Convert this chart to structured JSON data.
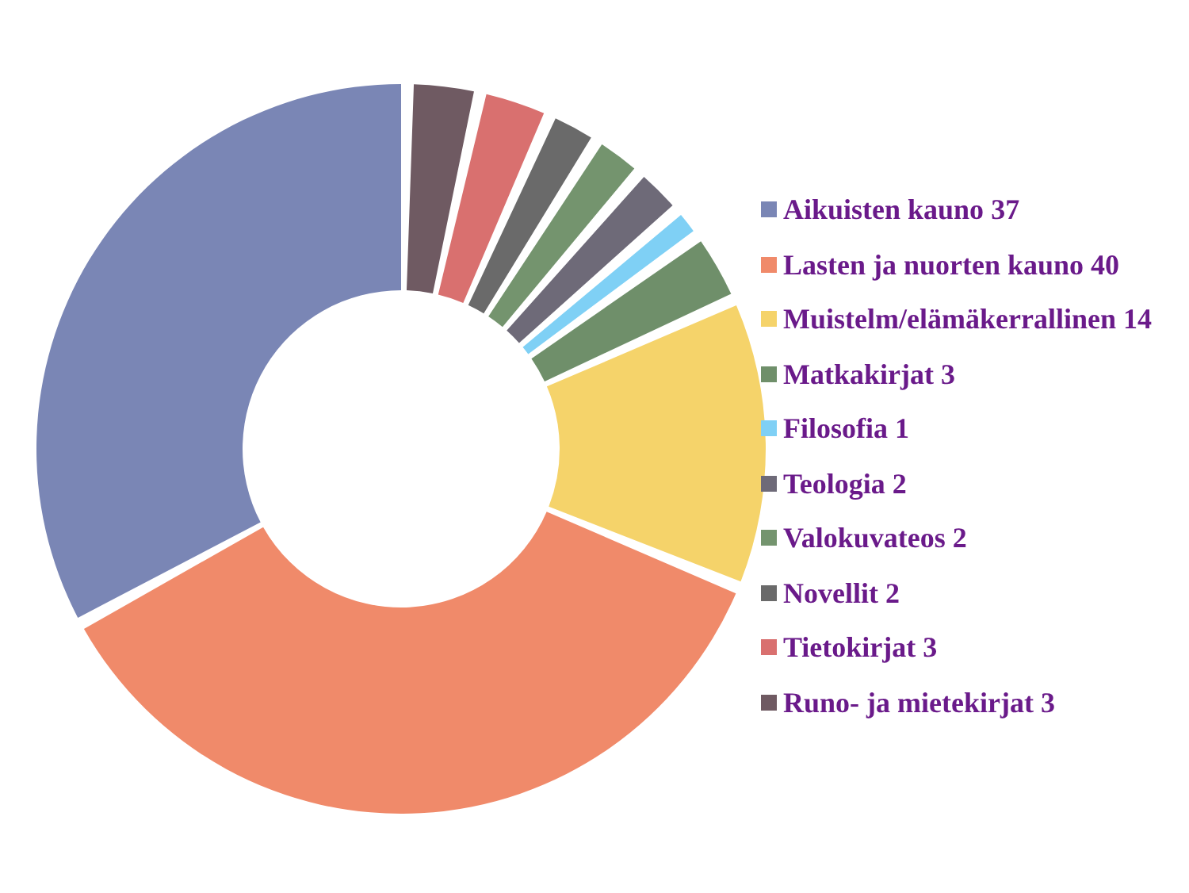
{
  "chart_data": {
    "type": "donut",
    "categories": [
      "Aikuisten kauno",
      "Lasten ja nuorten kauno",
      "Muistelm/elämäkerrallinen",
      "Matkakirjat",
      "Filosofia",
      "Teologia",
      "Valokuvateos",
      "Novellit",
      "Tietokirjat",
      "Runo- ja mietekirjat"
    ],
    "values": [
      37,
      40,
      14,
      3,
      1,
      2,
      2,
      2,
      3,
      3
    ],
    "colors": [
      "#7a86b5",
      "#f08a6a",
      "#f5d36a",
      "#6f8f6a",
      "#7fd0f5",
      "#6e6a78",
      "#74946e",
      "#6a6a6a",
      "#d9706f",
      "#6f5a62"
    ],
    "data_labels": true,
    "legend": "right"
  }
}
